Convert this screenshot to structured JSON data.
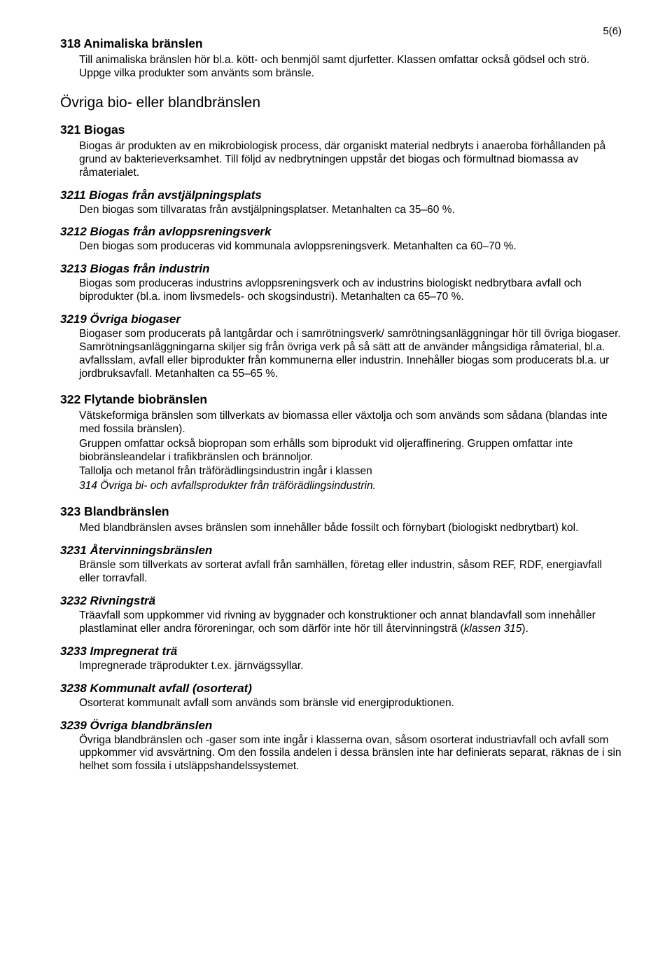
{
  "page_number": "5(6)",
  "sections": [
    {
      "level": "h3",
      "title": "318 Animaliska bränslen",
      "paragraphs": [
        {
          "indent": true,
          "text": "Till animaliska bränslen hör bl.a. kött- och benmjöl samt djurfetter. Klassen omfattar också gödsel och strö. Uppge vilka produkter som använts som bränsle."
        }
      ]
    },
    {
      "level": "h2",
      "title": "Övriga bio- eller blandbränslen"
    },
    {
      "level": "h3",
      "title": "321 Biogas",
      "paragraphs": [
        {
          "indent": true,
          "text": "Biogas är produkten av en mikrobiologisk process, där organiskt material nedbryts i anaeroba förhållanden på grund av bakterieverksamhet. Till följd av nedbrytningen uppstår det biogas och förmultnad biomassa av råmaterialet."
        }
      ],
      "subsections": [
        {
          "level": "h4",
          "title": "3211 Biogas från avstjälpningsplats",
          "paragraphs": [
            {
              "indent": true,
              "text": "Den biogas som tillvaratas från avstjälpningsplatser. Metanhalten ca 35–60 %."
            }
          ]
        },
        {
          "level": "h4",
          "title": "3212 Biogas från avloppsreningsverk",
          "paragraphs": [
            {
              "indent": true,
              "text": "Den biogas som produceras vid kommunala avloppsreningsverk. Metanhalten ca 60–70 %."
            }
          ]
        },
        {
          "level": "h4",
          "title": "3213 Biogas från industrin",
          "paragraphs": [
            {
              "indent": true,
              "text": "Biogas som produceras industrins avloppsreningsverk och av industrins biologiskt nedbrytbara avfall och biprodukter (bl.a. inom livsmedels- och skogsindustri). Metanhalten ca 65–70 %."
            }
          ]
        },
        {
          "level": "h4",
          "title": "3219 Övriga biogaser",
          "paragraphs": [
            {
              "indent": true,
              "text": "Biogaser som producerats på lantgårdar och i samrötningsverk/ samrötningsanläggningar hör till övriga biogaser. Samrötningsanläggningarna skiljer sig från övriga verk på så sätt att de använder mångsidiga råmaterial, bl.a. avfallsslam, avfall eller biprodukter från kommunerna eller industrin. Innehåller biogas som producerats bl.a. ur jordbruksavfall. Metanhalten ca 55–65 %."
            }
          ]
        }
      ]
    },
    {
      "level": "h3",
      "title": "322 Flytande biobränslen",
      "paragraphs": [
        {
          "indent": true,
          "text": "Vätskeformiga bränslen som tillverkats av biomassa eller växtolja och som används som sådana (blandas inte med fossila bränslen)."
        },
        {
          "indent": true,
          "text": "Gruppen omfattar också biopropan som erhålls som biprodukt vid oljeraffinering. Gruppen omfattar inte biobränsleandelar i trafikbränslen och brännoljor."
        },
        {
          "indent": true,
          "text": "Tallolja och metanol från träförädlingsindustrin ingår i klassen"
        },
        {
          "indent": true,
          "italic": true,
          "text": "314 Övriga bi- och avfallsprodukter från träförädlingsindustrin."
        }
      ]
    },
    {
      "level": "h3",
      "title": "323 Blandbränslen",
      "paragraphs": [
        {
          "indent": true,
          "text": "Med blandbränslen avses bränslen som innehåller både fossilt och förnybart (biologiskt nedbrytbart) kol."
        }
      ],
      "subsections": [
        {
          "level": "h4",
          "title": "3231 Återvinningsbränslen",
          "paragraphs": [
            {
              "indent": true,
              "text": "Bränsle som tillverkats av sorterat avfall från samhällen, företag eller industrin, såsom REF, RDF, energiavfall eller torravfall."
            }
          ]
        },
        {
          "level": "h4",
          "title": "3232 Rivningsträ",
          "paragraphs": [
            {
              "indent": true,
              "html": "Träavfall som uppkommer vid rivning av byggnader och konstruktioner och annat blandavfall som innehåller plastlaminat eller andra föroreningar, och som därför inte hör till återvinningsträ (<span class=\"italic\">klassen 315</span>)."
            }
          ]
        },
        {
          "level": "h4",
          "title": "3233 Impregnerat trä",
          "paragraphs": [
            {
              "indent": true,
              "text": "Impregnerade träprodukter t.ex. järnvägssyllar."
            }
          ]
        },
        {
          "level": "h4",
          "title": "3238 Kommunalt avfall (osorterat)",
          "paragraphs": [
            {
              "indent": true,
              "text": "Osorterat kommunalt avfall som används som bränsle vid energiproduktionen."
            }
          ]
        },
        {
          "level": "h4",
          "title": "3239 Övriga blandbränslen",
          "paragraphs": [
            {
              "indent": true,
              "text": "Övriga blandbränslen och -gaser som inte ingår i klasserna ovan, såsom osorterat industriavfall och avfall som uppkommer vid avsvärtning. Om den fossila andelen i dessa bränslen inte har definierats separat, räknas de i sin helhet som fossila i utsläppshandelssystemet."
            }
          ]
        }
      ]
    }
  ]
}
